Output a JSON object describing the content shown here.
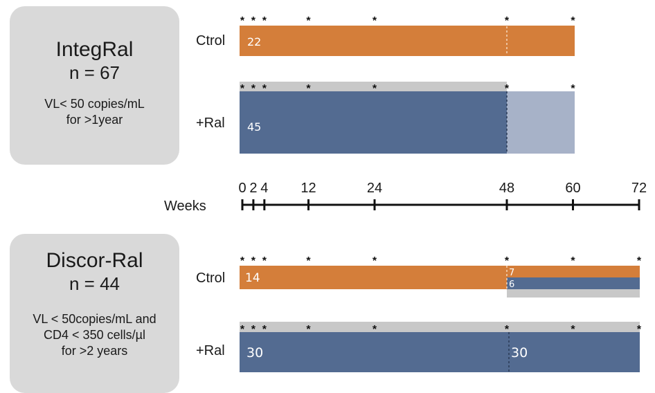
{
  "studies": [
    {
      "name": "IntegRal",
      "n_label": "n = 67",
      "description": [
        "VL< 50 copies/mL",
        "for >1year"
      ],
      "arms": [
        {
          "label": "Ctrol",
          "count": "22"
        },
        {
          "label": "+Ral",
          "count": "45"
        }
      ]
    },
    {
      "name": "Discor-Ral",
      "n_label": "n = 44",
      "description": [
        "VL < 50copies/mL and",
        "CD4 < 350 cells/µl",
        "for >2 years"
      ],
      "arms": [
        {
          "label": "Ctrol",
          "count": "14",
          "split_counts": [
            "7",
            "6"
          ]
        },
        {
          "label": "+Ral",
          "count": "30",
          "count_after": "30"
        }
      ]
    }
  ],
  "timeline": {
    "label": "Weeks",
    "ticks": [
      0,
      2,
      4,
      12,
      24,
      48,
      60,
      72
    ]
  },
  "visit_marker": "*",
  "visits": {
    "integral": [
      0,
      2,
      4,
      12,
      24,
      48,
      60
    ],
    "discor": [
      0,
      2,
      4,
      12,
      24,
      48,
      60,
      72
    ]
  },
  "colors": {
    "control": "#d47e3a",
    "raltegravir": "#536b91",
    "raltegravir_light": "#a7b2c8",
    "grey": "#c8c8c8",
    "box": "#d9d9d9"
  }
}
